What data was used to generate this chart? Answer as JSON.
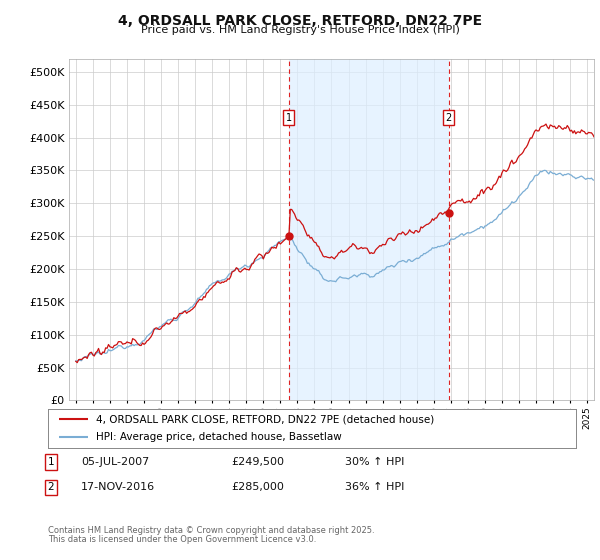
{
  "title": "4, ORDSALL PARK CLOSE, RETFORD, DN22 7PE",
  "subtitle": "Price paid vs. HM Land Registry's House Price Index (HPI)",
  "legend_line1": "4, ORDSALL PARK CLOSE, RETFORD, DN22 7PE (detached house)",
  "legend_line2": "HPI: Average price, detached house, Bassetlaw",
  "marker1_date": "05-JUL-2007",
  "marker1_price": 249500,
  "marker1_year": 2007.5,
  "marker1_pct": "30% ↑ HPI",
  "marker2_date": "17-NOV-2016",
  "marker2_price": 285000,
  "marker2_year": 2016.875,
  "marker2_pct": "36% ↑ HPI",
  "footnote1": "Contains HM Land Registry data © Crown copyright and database right 2025.",
  "footnote2": "This data is licensed under the Open Government Licence v3.0.",
  "hpi_color": "#7aadd4",
  "price_color": "#cc1111",
  "plot_bg": "#ffffff",
  "shaded_bg": "#ddeeff",
  "grid_color": "#cccccc",
  "vline_color": "#dd2222",
  "marker_box_color": "#cc1111",
  "ylim": [
    0,
    520000
  ],
  "yticks": [
    0,
    50000,
    100000,
    150000,
    200000,
    250000,
    300000,
    350000,
    400000,
    450000,
    500000
  ],
  "xlim_left": 1994.6,
  "xlim_right": 2025.4
}
